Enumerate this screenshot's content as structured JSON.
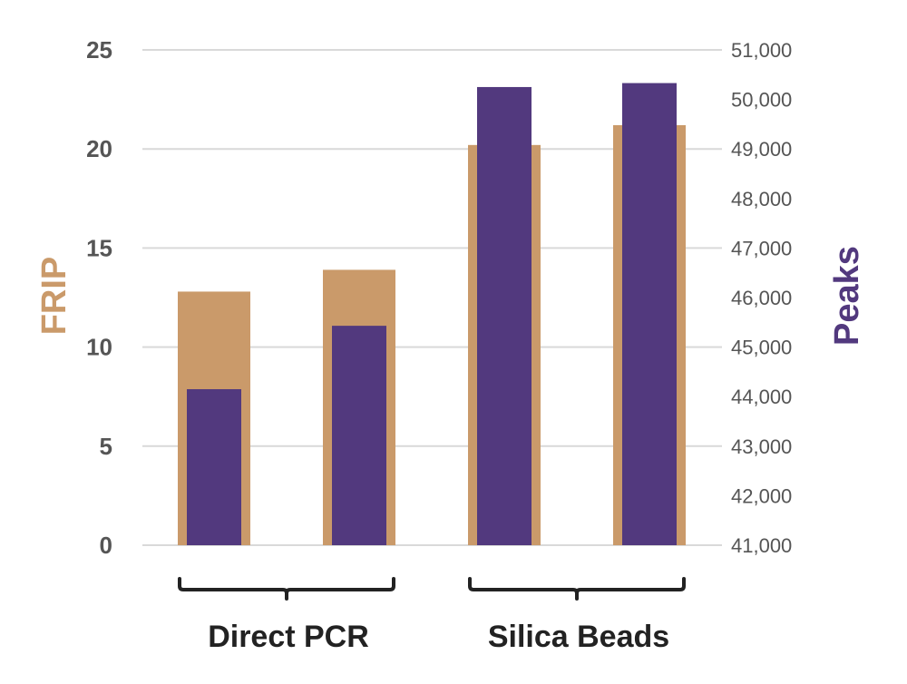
{
  "chart_data": {
    "type": "bar",
    "title": "",
    "ylabel": "FRIP",
    "y2label": "Peaks",
    "ylim": [
      0,
      25
    ],
    "y2lim": [
      41000,
      51000
    ],
    "yticks": [
      "0",
      "5",
      "10",
      "15",
      "20",
      "25"
    ],
    "y2ticks": [
      "41,000",
      "42,000",
      "43,000",
      "44,000",
      "45,000",
      "46,000",
      "47,000",
      "48,000",
      "49,000",
      "50,000",
      "51,000"
    ],
    "groups": [
      "Direct PCR",
      "Silica Beads"
    ],
    "series": [
      {
        "axis": "left",
        "color": "#CA9A6A",
        "values": [
          12.8,
          13.9,
          20.2,
          21.2
        ]
      },
      {
        "axis": "right",
        "color": "#52397E",
        "values": [
          44150,
          45430,
          50250,
          50330
        ]
      }
    ],
    "grid": true,
    "colors": {
      "frip": "#CA9A6A",
      "peaks": "#52397E",
      "grid": "#d9d9d9",
      "tick_text": "#555555",
      "bracket": "#222222"
    }
  }
}
